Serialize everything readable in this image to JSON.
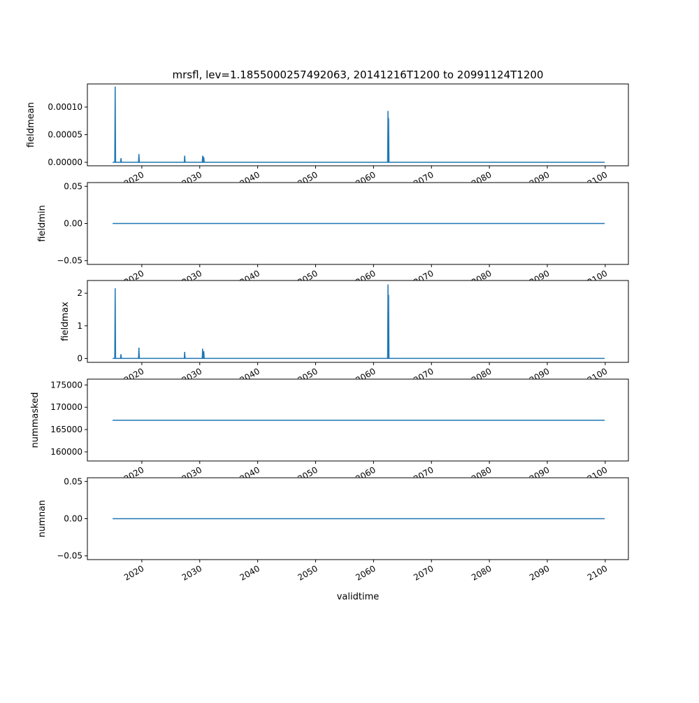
{
  "chart_data": {
    "type": "line",
    "title": "mrsfl, lev=1.1855000257492063, 20141216T1200 to 20991124T1200",
    "xlabel": "validtime",
    "xlim": [
      2010.6,
      2104.0
    ],
    "xticks": [
      2020,
      2030,
      2040,
      2050,
      2060,
      2070,
      2080,
      2090,
      2100
    ],
    "xtick_labels": [
      "2020",
      "2030",
      "2040",
      "2050",
      "2060",
      "2070",
      "2080",
      "2090",
      "2100"
    ],
    "line_color": "#1f77b4",
    "x_range": [
      2014.96,
      2099.9
    ],
    "panels": [
      {
        "ylabel": "fieldmean",
        "ylim": [
          -6.3e-06,
          0.0001418
        ],
        "yticks": [
          0,
          5e-05,
          0.0001
        ],
        "ytick_labels": [
          "0.00000",
          "0.00005",
          "0.00010"
        ],
        "baseline": 0,
        "spikes": [
          [
            2015.4,
            0.000137
          ],
          [
            2016.4,
            7.5e-06
          ],
          [
            2019.5,
            1.5e-05
          ],
          [
            2027.4,
            1.2e-05
          ],
          [
            2030.5,
            1.2e-05
          ],
          [
            2030.7,
            9.5e-06
          ],
          [
            2062.5,
            9.3e-05
          ],
          [
            2062.6,
            8e-05
          ]
        ]
      },
      {
        "ylabel": "fieldmin",
        "ylim": [
          -0.055,
          0.055
        ],
        "yticks": [
          -0.05,
          0,
          0.05
        ],
        "ytick_labels": [
          "−0.05",
          "0.00",
          "0.05"
        ],
        "baseline": 0,
        "spikes": []
      },
      {
        "ylabel": "fieldmax",
        "ylim": [
          -0.12,
          2.39
        ],
        "yticks": [
          0,
          1,
          2
        ],
        "ytick_labels": [
          "0",
          "1",
          "2"
        ],
        "baseline": 0,
        "spikes": [
          [
            2015.4,
            2.15
          ],
          [
            2016.4,
            0.13
          ],
          [
            2019.5,
            0.33
          ],
          [
            2027.4,
            0.2
          ],
          [
            2030.5,
            0.3
          ],
          [
            2030.7,
            0.22
          ],
          [
            2062.5,
            2.27
          ],
          [
            2062.6,
            1.95
          ]
        ]
      },
      {
        "ylabel": "nummasked",
        "ylim": [
          157960,
          176300
        ],
        "yticks": [
          160000,
          165000,
          170000,
          175000
        ],
        "ytick_labels": [
          "160000",
          "165000",
          "170000",
          "175000"
        ],
        "baseline": 167100,
        "spikes": []
      },
      {
        "ylabel": "numnan",
        "ylim": [
          -0.055,
          0.055
        ],
        "yticks": [
          -0.05,
          0,
          0.05
        ],
        "ytick_labels": [
          "−0.05",
          "0.00",
          "0.05"
        ],
        "baseline": 0,
        "spikes": []
      }
    ]
  }
}
